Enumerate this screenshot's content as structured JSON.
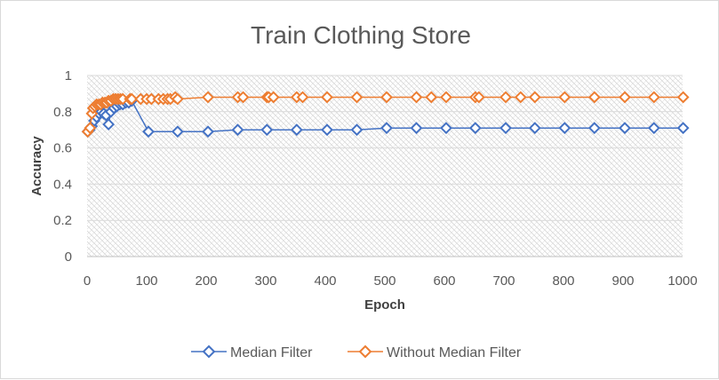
{
  "chart_data": {
    "type": "line",
    "title": "Train Clothing Store",
    "xlabel": "Epoch",
    "ylabel": "Accuracy",
    "xlim": [
      0,
      1000
    ],
    "ylim": [
      0,
      1
    ],
    "x_ticks": [
      "0",
      "100",
      "200",
      "300",
      "400",
      "500",
      "600",
      "700",
      "800",
      "900",
      "1000"
    ],
    "y_ticks": [
      "0",
      "0.2",
      "0.4",
      "0.6",
      "0.8",
      "1"
    ],
    "grid": true,
    "legend_position": "bottom",
    "series": [
      {
        "name": "Median Filter",
        "color": "#4472C4",
        "marker": "diamond-open",
        "points": [
          [
            1,
            0.69
          ],
          [
            4,
            0.7
          ],
          [
            8,
            0.72
          ],
          [
            12,
            0.75
          ],
          [
            16,
            0.77
          ],
          [
            20,
            0.79
          ],
          [
            24,
            0.8
          ],
          [
            28,
            0.79
          ],
          [
            32,
            0.78
          ],
          [
            36,
            0.73
          ],
          [
            40,
            0.8
          ],
          [
            45,
            0.82
          ],
          [
            50,
            0.83
          ],
          [
            55,
            0.84
          ],
          [
            60,
            0.84
          ],
          [
            65,
            0.85
          ],
          [
            70,
            0.85
          ],
          [
            75,
            0.86
          ],
          [
            103,
            0.69
          ],
          [
            152,
            0.69
          ],
          [
            203,
            0.69
          ],
          [
            253,
            0.7
          ],
          [
            302,
            0.7
          ],
          [
            352,
            0.7
          ],
          [
            403,
            0.7
          ],
          [
            453,
            0.7
          ],
          [
            503,
            0.71
          ],
          [
            553,
            0.71
          ],
          [
            603,
            0.71
          ],
          [
            652,
            0.71
          ],
          [
            703,
            0.71
          ],
          [
            752,
            0.71
          ],
          [
            802,
            0.71
          ],
          [
            852,
            0.71
          ],
          [
            903,
            0.71
          ],
          [
            952,
            0.71
          ],
          [
            1001,
            0.71
          ]
        ]
      },
      {
        "name": "Without Median Filter",
        "color": "#ED7D31",
        "marker": "diamond-open",
        "points": [
          [
            1,
            0.69
          ],
          [
            5,
            0.71
          ],
          [
            8,
            0.79
          ],
          [
            10,
            0.82
          ],
          [
            13,
            0.83
          ],
          [
            16,
            0.84
          ],
          [
            20,
            0.84
          ],
          [
            23,
            0.84
          ],
          [
            26,
            0.85
          ],
          [
            30,
            0.85
          ],
          [
            33,
            0.85
          ],
          [
            36,
            0.86
          ],
          [
            40,
            0.86
          ],
          [
            44,
            0.87
          ],
          [
            48,
            0.87
          ],
          [
            52,
            0.87
          ],
          [
            56,
            0.87
          ],
          [
            60,
            0.87
          ],
          [
            72,
            0.87
          ],
          [
            75,
            0.87
          ],
          [
            90,
            0.87
          ],
          [
            100,
            0.87
          ],
          [
            108,
            0.87
          ],
          [
            120,
            0.87
          ],
          [
            128,
            0.87
          ],
          [
            135,
            0.87
          ],
          [
            140,
            0.87
          ],
          [
            148,
            0.88
          ],
          [
            152,
            0.87
          ],
          [
            203,
            0.88
          ],
          [
            253,
            0.88
          ],
          [
            262,
            0.88
          ],
          [
            302,
            0.88
          ],
          [
            305,
            0.88
          ],
          [
            313,
            0.88
          ],
          [
            352,
            0.88
          ],
          [
            362,
            0.88
          ],
          [
            403,
            0.88
          ],
          [
            453,
            0.88
          ],
          [
            503,
            0.88
          ],
          [
            553,
            0.88
          ],
          [
            578,
            0.88
          ],
          [
            603,
            0.88
          ],
          [
            652,
            0.88
          ],
          [
            658,
            0.88
          ],
          [
            703,
            0.88
          ],
          [
            728,
            0.88
          ],
          [
            752,
            0.88
          ],
          [
            802,
            0.88
          ],
          [
            852,
            0.88
          ],
          [
            903,
            0.88
          ],
          [
            952,
            0.88
          ],
          [
            1001,
            0.88
          ]
        ]
      }
    ]
  }
}
